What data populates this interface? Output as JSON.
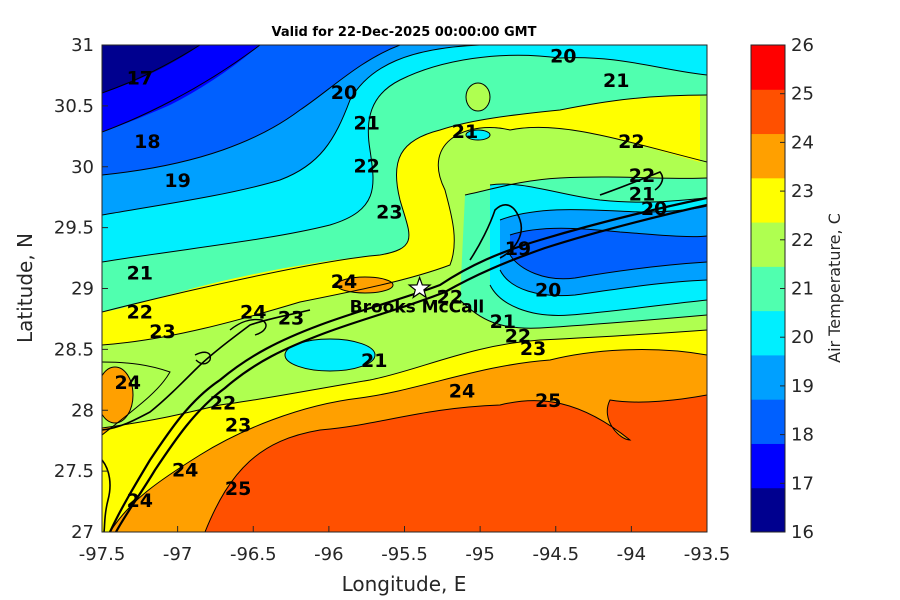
{
  "title": "Valid for 22-Dec-2025 00:00:00 GMT",
  "x_axis": {
    "label": "Longitude, E",
    "ticks": [
      "-97.5",
      "-97",
      "-96.5",
      "-96",
      "-95.5",
      "-95",
      "-94.5",
      "-94",
      "-93.5"
    ]
  },
  "y_axis": {
    "label": "Latitude, N",
    "ticks": [
      "31",
      "30.5",
      "30",
      "29.5",
      "29",
      "28.5",
      "28",
      "27.5",
      "27"
    ]
  },
  "colorbar": {
    "label": "Air Temperature, C",
    "ticks": [
      "26",
      "25",
      "24",
      "23",
      "22",
      "21",
      "20",
      "19",
      "18",
      "17",
      "16"
    ],
    "colors": [
      "#00008f",
      "#0000ff",
      "#0060ff",
      "#00a0ff",
      "#00efff",
      "#50ffaf",
      "#afff50",
      "#ffff00",
      "#ffa000",
      "#ff5000",
      "#ff0000"
    ]
  },
  "station": {
    "name": "Brooks McCall",
    "lon": -95.4,
    "lat": 29.0
  },
  "contour_labels": [
    {
      "text": "17",
      "lon": -97.25,
      "lat": 30.72
    },
    {
      "text": "18",
      "lon": -97.2,
      "lat": 30.2
    },
    {
      "text": "19",
      "lon": -97.0,
      "lat": 29.88
    },
    {
      "text": "20",
      "lon": -95.9,
      "lat": 30.6
    },
    {
      "text": "21",
      "lon": -95.75,
      "lat": 30.35
    },
    {
      "text": "22",
      "lon": -95.75,
      "lat": 30.0
    },
    {
      "text": "23",
      "lon": -95.6,
      "lat": 29.62
    },
    {
      "text": "21",
      "lon": -95.1,
      "lat": 30.28
    },
    {
      "text": "20",
      "lon": -94.45,
      "lat": 30.9
    },
    {
      "text": "21",
      "lon": -94.1,
      "lat": 30.7
    },
    {
      "text": "22",
      "lon": -94.0,
      "lat": 30.2
    },
    {
      "text": "22",
      "lon": -93.93,
      "lat": 29.92
    },
    {
      "text": "21",
      "lon": -93.93,
      "lat": 29.77
    },
    {
      "text": "20",
      "lon": -93.85,
      "lat": 29.65
    },
    {
      "text": "19",
      "lon": -94.75,
      "lat": 29.32
    },
    {
      "text": "20",
      "lon": -94.55,
      "lat": 28.98
    },
    {
      "text": "21",
      "lon": -94.85,
      "lat": 28.72
    },
    {
      "text": "22",
      "lon": -94.75,
      "lat": 28.6
    },
    {
      "text": "23",
      "lon": -94.65,
      "lat": 28.5
    },
    {
      "text": "21",
      "lon": -97.25,
      "lat": 29.12
    },
    {
      "text": "22",
      "lon": -97.25,
      "lat": 28.8
    },
    {
      "text": "23",
      "lon": -97.1,
      "lat": 28.64
    },
    {
      "text": "24",
      "lon": -95.9,
      "lat": 29.05
    },
    {
      "text": "24",
      "lon": -96.5,
      "lat": 28.8
    },
    {
      "text": "23",
      "lon": -96.25,
      "lat": 28.75
    },
    {
      "text": "22",
      "lon": -95.2,
      "lat": 28.92
    },
    {
      "text": "21",
      "lon": -95.7,
      "lat": 28.4
    },
    {
      "text": "24",
      "lon": -97.33,
      "lat": 28.22
    },
    {
      "text": "22",
      "lon": -96.7,
      "lat": 28.05
    },
    {
      "text": "23",
      "lon": -96.6,
      "lat": 27.87
    },
    {
      "text": "24",
      "lon": -95.12,
      "lat": 28.15
    },
    {
      "text": "25",
      "lon": -94.55,
      "lat": 28.07
    },
    {
      "text": "24",
      "lon": -96.95,
      "lat": 27.5
    },
    {
      "text": "25",
      "lon": -96.6,
      "lat": 27.35
    },
    {
      "text": "24",
      "lon": -97.25,
      "lat": 27.25
    }
  ]
}
